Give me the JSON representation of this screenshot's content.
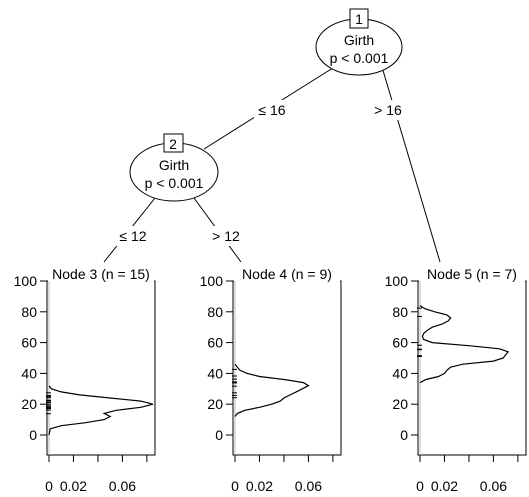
{
  "chart_data": {
    "type": "tree",
    "inner_nodes": [
      {
        "id": "1",
        "variable": "Girth",
        "pvalue": "p < 0.001"
      },
      {
        "id": "2",
        "variable": "Girth",
        "pvalue": "p < 0.001"
      }
    ],
    "edges": [
      {
        "from": "1",
        "to": "2",
        "label": "≤ 16"
      },
      {
        "from": "1",
        "to": "5",
        "label": "> 16"
      },
      {
        "from": "2",
        "to": "3",
        "label": "≤ 12"
      },
      {
        "from": "2",
        "to": "4",
        "label": "> 12"
      }
    ],
    "terminal_nodes": [
      {
        "id": "3",
        "title": "Node 3 (n = 15)",
        "density": [
          [
            0,
            0
          ],
          [
            4,
            0.001
          ],
          [
            6,
            0.01
          ],
          [
            8,
            0.03
          ],
          [
            10,
            0.045
          ],
          [
            12,
            0.05
          ],
          [
            14,
            0.045
          ],
          [
            16,
            0.055
          ],
          [
            18,
            0.075
          ],
          [
            20,
            0.085
          ],
          [
            22,
            0.075
          ],
          [
            24,
            0.05
          ],
          [
            26,
            0.025
          ],
          [
            28,
            0.01
          ],
          [
            30,
            0.002
          ],
          [
            32,
            0
          ]
        ],
        "rug": [
          13.8,
          16.2,
          17.2,
          17.9,
          18.2,
          18.9,
          19.9,
          21.0,
          21.3,
          22.2,
          22.6,
          24.2,
          24.9,
          25.7,
          27.4
        ]
      },
      {
        "id": "4",
        "title": "Node 4 (n = 9)",
        "density": [
          [
            12,
            0
          ],
          [
            14,
            0.002
          ],
          [
            16,
            0.008
          ],
          [
            18,
            0.02
          ],
          [
            20,
            0.03
          ],
          [
            22,
            0.037
          ],
          [
            24,
            0.04
          ],
          [
            26,
            0.045
          ],
          [
            28,
            0.05
          ],
          [
            30,
            0.055
          ],
          [
            32,
            0.06
          ],
          [
            34,
            0.056
          ],
          [
            36,
            0.04
          ],
          [
            38,
            0.02
          ],
          [
            40,
            0.01
          ],
          [
            42,
            0.004
          ],
          [
            44,
            0.002
          ],
          [
            46,
            0
          ]
        ],
        "rug": [
          24.2,
          25.7,
          27.4,
          31.7,
          33.8,
          34.5,
          36.3,
          38.3,
          42.6
        ]
      },
      {
        "id": "5",
        "title": "Node 5 (n = 7)",
        "density": [
          [
            34,
            0
          ],
          [
            36,
            0.005
          ],
          [
            38,
            0.015
          ],
          [
            40,
            0.02
          ],
          [
            42,
            0.022
          ],
          [
            44,
            0.025
          ],
          [
            46,
            0.035
          ],
          [
            48,
            0.06
          ],
          [
            50,
            0.068
          ],
          [
            52,
            0.07
          ],
          [
            54,
            0.072
          ],
          [
            56,
            0.065
          ],
          [
            58,
            0.04
          ],
          [
            60,
            0.01
          ],
          [
            62,
            0.003
          ],
          [
            64,
            0.002
          ],
          [
            66,
            0.003
          ],
          [
            68,
            0.006
          ],
          [
            70,
            0.01
          ],
          [
            72,
            0.018
          ],
          [
            74,
            0.023
          ],
          [
            76,
            0.025
          ],
          [
            78,
            0.022
          ],
          [
            80,
            0.012
          ],
          [
            82,
            0.004
          ],
          [
            84,
            0
          ]
        ],
        "rug": [
          51.0,
          51.5,
          55.4,
          55.7,
          58.3,
          77.0,
          82.4
        ]
      }
    ],
    "y_ticks": [
      0,
      20,
      40,
      60,
      80,
      100
    ],
    "x_tick_labels": [
      "0",
      "0.02",
      "0.06"
    ],
    "ylim": [
      -13,
      100
    ],
    "xlim": [
      0,
      0.085
    ]
  }
}
